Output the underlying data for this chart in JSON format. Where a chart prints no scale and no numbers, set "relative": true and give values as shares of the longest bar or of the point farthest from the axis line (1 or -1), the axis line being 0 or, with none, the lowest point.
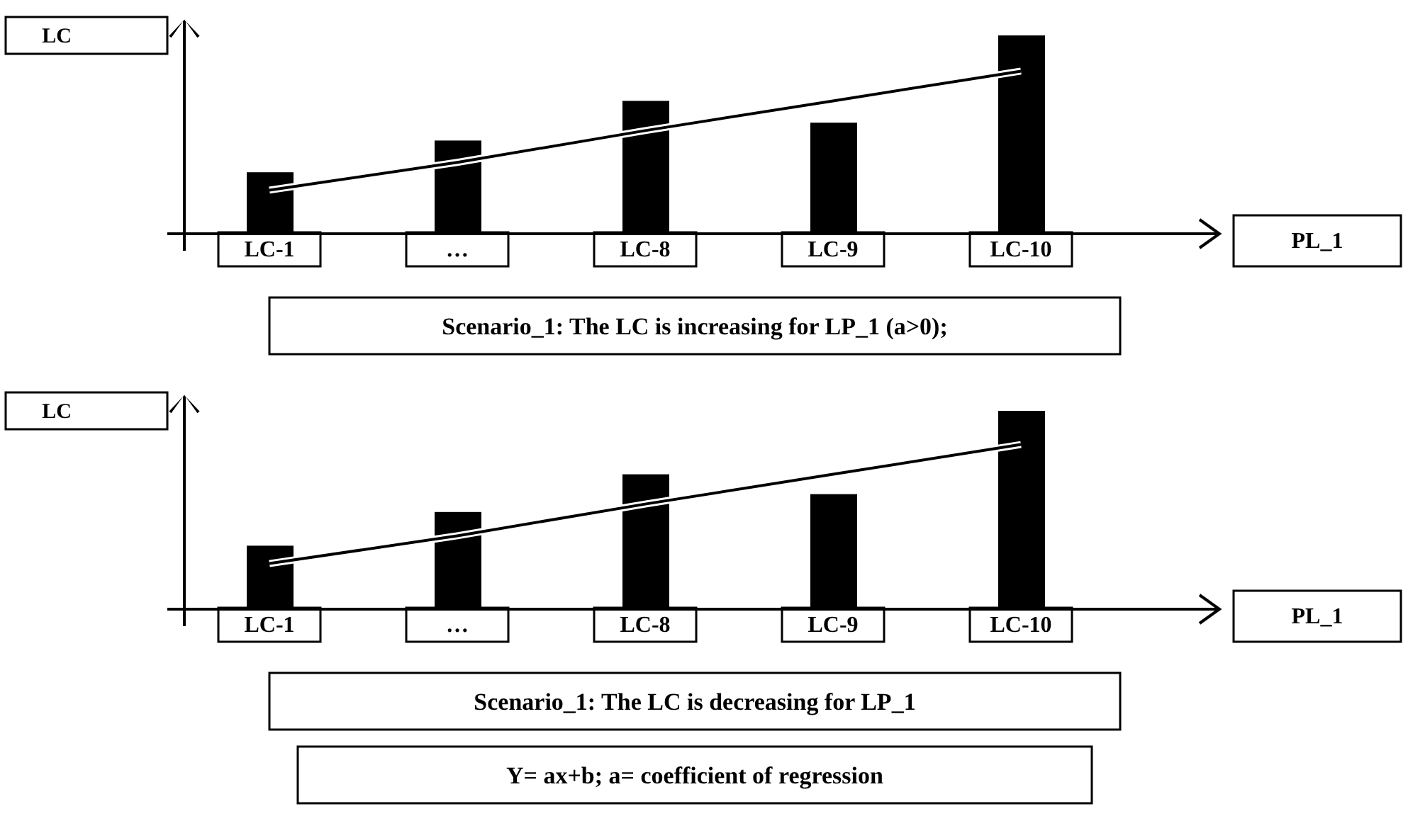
{
  "chart_data": [
    {
      "type": "bar",
      "relative": true,
      "ylabel": "LC",
      "xlabel": "PL_1",
      "categories": [
        "LC-1",
        "…",
        "LC-8",
        "LC-9",
        "LC-10"
      ],
      "series": [
        {
          "color": "#000000",
          "values": [
            0.31,
            0.47,
            0.67,
            0.56,
            1
          ]
        },
        {
          "type": "line",
          "color": "#000000",
          "values": [
            0.22,
            0.36,
            0.52,
            0.67,
            0.82
          ]
        }
      ],
      "annotations": [
        "Scenario_1: The LC is increasing for LP_1 (a>0);"
      ]
    },
    {
      "type": "bar",
      "relative": true,
      "ylabel": "LC",
      "xlabel": "PL_1",
      "categories": [
        "LC-1",
        "…",
        "LC-8",
        "LC-9",
        "LC-10"
      ],
      "series": [
        {
          "color": "#000000",
          "values": [
            0.32,
            0.49,
            0.68,
            0.58,
            1
          ]
        },
        {
          "type": "line",
          "color": "#000000",
          "values": [
            0.23,
            0.37,
            0.53,
            0.68,
            0.83
          ]
        }
      ],
      "annotations": [
        "Scenario_1: The LC is decreasing for LP_1",
        "Y= ax+b; a= coefficient of regression"
      ]
    }
  ]
}
